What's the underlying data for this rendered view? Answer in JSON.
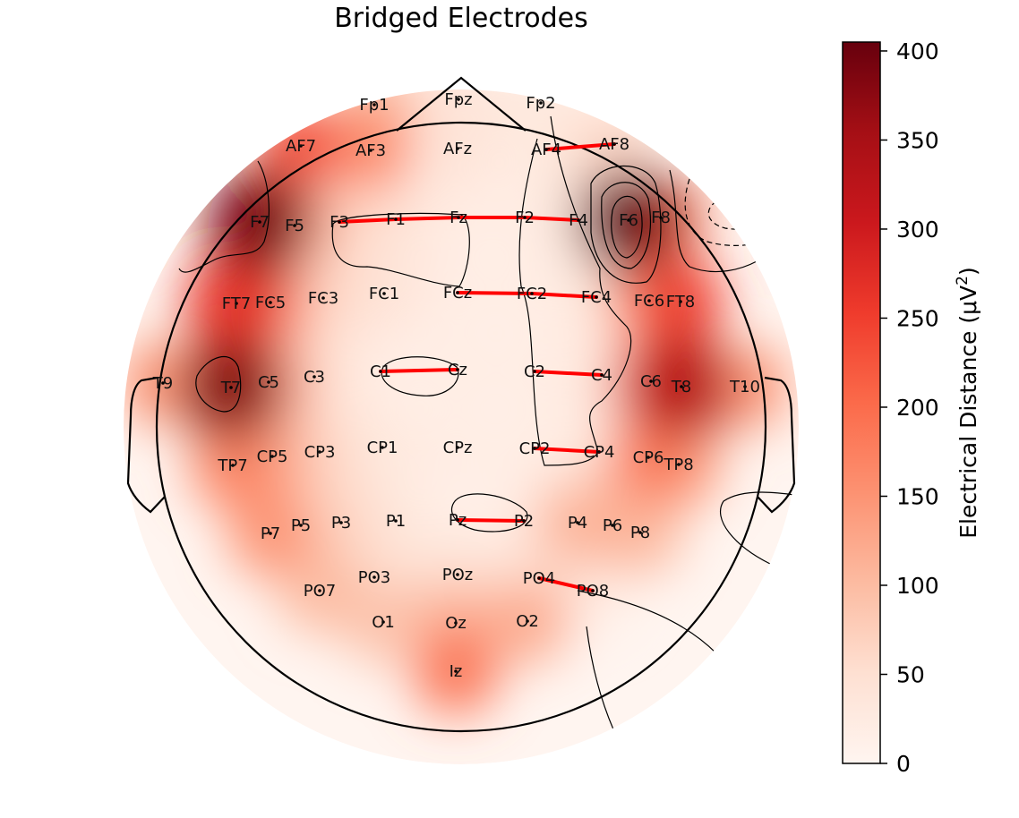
{
  "chart_data": {
    "type": "heatmap",
    "title": "Bridged Electrodes",
    "colorbar": {
      "label": "Electrical Distance (μV²)",
      "min": 0,
      "max": 405,
      "ticks": [
        0,
        50,
        100,
        150,
        200,
        250,
        300,
        350,
        400
      ],
      "tick_labels": [
        "0",
        "50",
        "100",
        "150",
        "200",
        "250",
        "300",
        "350",
        "400"
      ],
      "colormap": "Reds",
      "colors": [
        "#fff5f0",
        "#fee0d2",
        "#fcbba1",
        "#fc9272",
        "#fb6a4a",
        "#ef3b2c",
        "#cb181d",
        "#a50f15",
        "#67000d"
      ]
    },
    "electrodes": [
      {
        "name": "Fp1",
        "value": 100
      },
      {
        "name": "Fpz",
        "value": 40
      },
      {
        "name": "Fp2",
        "value": 30
      },
      {
        "name": "AF7",
        "value": 230
      },
      {
        "name": "AF3",
        "value": 160
      },
      {
        "name": "AFz",
        "value": 40
      },
      {
        "name": "AF4",
        "value": 30
      },
      {
        "name": "AF8",
        "value": 60
      },
      {
        "name": "F7",
        "value": 390
      },
      {
        "name": "F5",
        "value": 140
      },
      {
        "name": "F3",
        "value": 60
      },
      {
        "name": "F1",
        "value": 40
      },
      {
        "name": "Fz",
        "value": 20
      },
      {
        "name": "F2",
        "value": 20
      },
      {
        "name": "F4",
        "value": 30
      },
      {
        "name": "F6",
        "value": 400
      },
      {
        "name": "F8",
        "value": 200
      },
      {
        "name": "FT7",
        "value": 260
      },
      {
        "name": "FC5",
        "value": 150
      },
      {
        "name": "FC3",
        "value": 60
      },
      {
        "name": "FC1",
        "value": 40
      },
      {
        "name": "FCz",
        "value": 20
      },
      {
        "name": "FC2",
        "value": 20
      },
      {
        "name": "FC4",
        "value": 30
      },
      {
        "name": "FC6",
        "value": 160
      },
      {
        "name": "FT8",
        "value": 250
      },
      {
        "name": "T9",
        "value": 150
      },
      {
        "name": "T7",
        "value": 380
      },
      {
        "name": "C5",
        "value": 150
      },
      {
        "name": "C3",
        "value": 50
      },
      {
        "name": "C1",
        "value": 20
      },
      {
        "name": "Cz",
        "value": 20
      },
      {
        "name": "C2",
        "value": 20
      },
      {
        "name": "C4",
        "value": 30
      },
      {
        "name": "C6",
        "value": 220
      },
      {
        "name": "T8",
        "value": 330
      },
      {
        "name": "T10",
        "value": 150
      },
      {
        "name": "TP7",
        "value": 170
      },
      {
        "name": "CP5",
        "value": 120
      },
      {
        "name": "CP3",
        "value": 60
      },
      {
        "name": "CP1",
        "value": 30
      },
      {
        "name": "CPz",
        "value": 20
      },
      {
        "name": "CP2",
        "value": 20
      },
      {
        "name": "CP4",
        "value": 30
      },
      {
        "name": "CP6",
        "value": 180
      },
      {
        "name": "TP8",
        "value": 140
      },
      {
        "name": "P7",
        "value": 150
      },
      {
        "name": "P5",
        "value": 80
      },
      {
        "name": "P3",
        "value": 60
      },
      {
        "name": "P1",
        "value": 30
      },
      {
        "name": "Pz",
        "value": 10
      },
      {
        "name": "P2",
        "value": 20
      },
      {
        "name": "P4",
        "value": 110
      },
      {
        "name": "P6",
        "value": 110
      },
      {
        "name": "P8",
        "value": 100
      },
      {
        "name": "PO7",
        "value": 100
      },
      {
        "name": "PO3",
        "value": 50
      },
      {
        "name": "POz",
        "value": 40
      },
      {
        "name": "PO4",
        "value": 40
      },
      {
        "name": "PO8",
        "value": 20
      },
      {
        "name": "O1",
        "value": 90
      },
      {
        "name": "Oz",
        "value": 110
      },
      {
        "name": "O2",
        "value": 120
      },
      {
        "name": "Iz",
        "value": 190
      }
    ],
    "bridged_pairs": [
      [
        "AF4",
        "AF8"
      ],
      [
        "F3",
        "F1"
      ],
      [
        "F1",
        "Fz"
      ],
      [
        "Fz",
        "F2"
      ],
      [
        "F2",
        "F4"
      ],
      [
        "FCz",
        "FC2"
      ],
      [
        "FC2",
        "FC4"
      ],
      [
        "C1",
        "Cz"
      ],
      [
        "C2",
        "C4"
      ],
      [
        "CP2",
        "CP4"
      ],
      [
        "Pz",
        "P2"
      ],
      [
        "PO4",
        "PO8"
      ]
    ],
    "bridge_color": "#ff0000",
    "outline_color": "#000000"
  }
}
